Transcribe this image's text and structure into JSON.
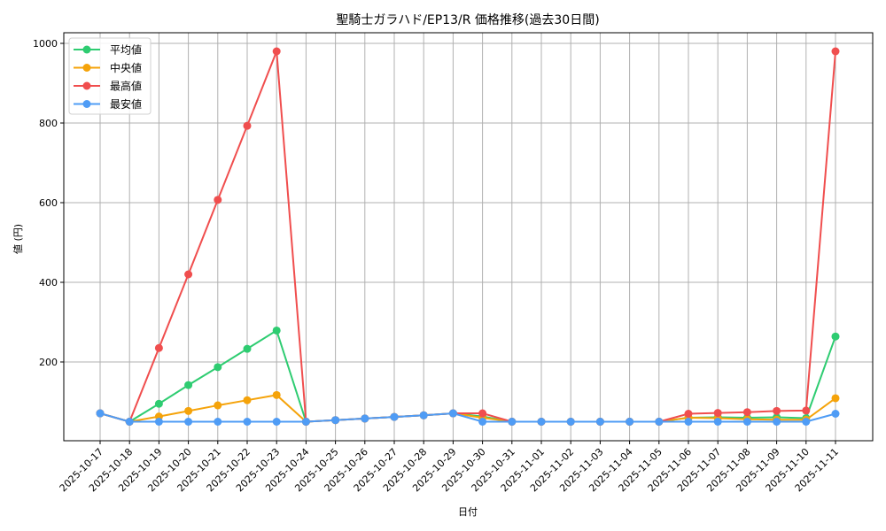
{
  "chart_data": {
    "type": "line",
    "title": "聖騎士ガラハド/EP13/R 価格推移(過去30日間)",
    "xlabel": "日付",
    "ylabel": "値 (円)",
    "ylim": [
      0,
      1000
    ],
    "yticks": [
      200,
      400,
      600,
      800,
      1000
    ],
    "grid": true,
    "legend_position": "upper left",
    "x": [
      "2025-10-17",
      "2025-10-18",
      "2025-10-19",
      "2025-10-20",
      "2025-10-21",
      "2025-10-22",
      "2025-10-23",
      "2025-10-24",
      "2025-10-25",
      "2025-10-26",
      "2025-10-27",
      "2025-10-28",
      "2025-10-29",
      "2025-10-30",
      "2025-10-31",
      "2025-11-01",
      "2025-11-02",
      "2025-11-03",
      "2025-11-04",
      "2025-11-05",
      "2025-11-06",
      "2025-11-07",
      "2025-11-08",
      "2025-11-09",
      "2025-11-10",
      "2025-11-11"
    ],
    "series": [
      {
        "name": "平均値",
        "color": "#2ecc71",
        "values": [
          71,
          50,
          95,
          142,
          187,
          233,
          279,
          50,
          54,
          58,
          62,
          66,
          71,
          63,
          50,
          50,
          50,
          50,
          50,
          50,
          60,
          61,
          60,
          61,
          59,
          264
        ]
      },
      {
        "name": "中央値",
        "color": "#f5a30a",
        "values": [
          71,
          50,
          63,
          77,
          91,
          104,
          117,
          50,
          54,
          58,
          62,
          66,
          71,
          60,
          50,
          50,
          50,
          50,
          50,
          50,
          60,
          59,
          56,
          55,
          55,
          109
        ]
      },
      {
        "name": "最高値",
        "color": "#f04e4e",
        "values": [
          71,
          50,
          235,
          420,
          607,
          793,
          980,
          50,
          54,
          58,
          62,
          66,
          71,
          71,
          50,
          50,
          50,
          50,
          50,
          50,
          70,
          72,
          74,
          77,
          78,
          980
        ]
      },
      {
        "name": "最安値",
        "color": "#4f9cf5",
        "values": [
          71,
          50,
          50,
          50,
          50,
          50,
          50,
          50,
          54,
          58,
          62,
          66,
          71,
          50,
          50,
          50,
          50,
          50,
          50,
          50,
          50,
          50,
          50,
          50,
          50,
          70
        ]
      }
    ]
  }
}
